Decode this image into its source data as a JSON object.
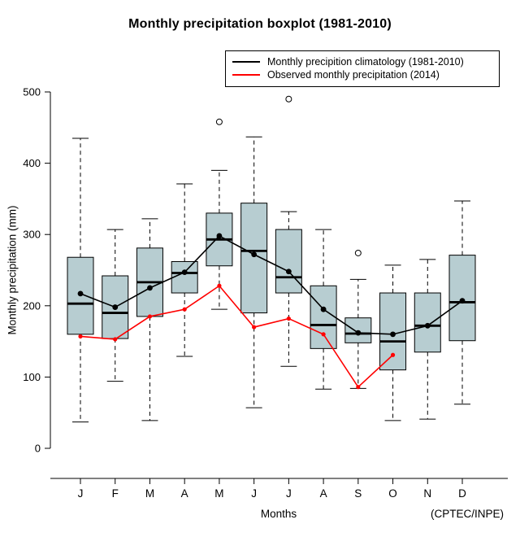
{
  "chart_data": {
    "type": "boxplot",
    "title": "Monthly precipitation boxplot (1981-2010)",
    "xlabel": "Months",
    "ylabel": "Monthly precipitation (mm)",
    "credit": "(CPTEC/INPE)",
    "categories": [
      "J",
      "F",
      "M",
      "A",
      "M",
      "J",
      "J",
      "A",
      "S",
      "O",
      "N",
      "D"
    ],
    "yticks": [
      0,
      100,
      200,
      300,
      400,
      500
    ],
    "ylim": [
      0,
      560
    ],
    "grid": false,
    "legend_position": "top-right-inside",
    "box_fill": "#b7cdd1",
    "box_stroke": "#000000",
    "boxes": [
      {
        "month": "J",
        "low": 37,
        "q1": 160,
        "median": 203,
        "q3": 268,
        "high": 435,
        "outliers": []
      },
      {
        "month": "F",
        "low": 94,
        "q1": 154,
        "median": 190,
        "q3": 242,
        "high": 307,
        "outliers": []
      },
      {
        "month": "M",
        "low": 39,
        "q1": 185,
        "median": 233,
        "q3": 281,
        "high": 322,
        "outliers": []
      },
      {
        "month": "A",
        "low": 129,
        "q1": 218,
        "median": 246,
        "q3": 262,
        "high": 371,
        "outliers": []
      },
      {
        "month": "M",
        "low": 195,
        "q1": 256,
        "median": 293,
        "q3": 330,
        "high": 390,
        "outliers": [
          458
        ]
      },
      {
        "month": "J",
        "low": 57,
        "q1": 190,
        "median": 277,
        "q3": 344,
        "high": 437,
        "outliers": []
      },
      {
        "month": "J",
        "low": 115,
        "q1": 218,
        "median": 240,
        "q3": 307,
        "high": 332,
        "outliers": [
          490
        ]
      },
      {
        "month": "A",
        "low": 83,
        "q1": 140,
        "median": 173,
        "q3": 228,
        "high": 307,
        "outliers": []
      },
      {
        "month": "S",
        "low": 84,
        "q1": 148,
        "median": 161,
        "q3": 183,
        "high": 237,
        "outliers": [
          274
        ]
      },
      {
        "month": "O",
        "low": 39,
        "q1": 110,
        "median": 150,
        "q3": 218,
        "high": 257,
        "outliers": []
      },
      {
        "month": "N",
        "low": 41,
        "q1": 135,
        "median": 172,
        "q3": 218,
        "high": 265,
        "outliers": []
      },
      {
        "month": "D",
        "low": 62,
        "q1": 151,
        "median": 205,
        "q3": 271,
        "high": 347,
        "outliers": []
      }
    ],
    "series": [
      {
        "name": "Monthly precipition climatology (1981-2010)",
        "color": "#000000",
        "values": [
          217,
          198,
          225,
          247,
          298,
          272,
          248,
          195,
          162,
          160,
          172,
          207
        ]
      },
      {
        "name": "Observed monthly precipitation (2014)",
        "color": "#ff0000",
        "values": [
          157,
          153,
          185,
          195,
          228,
          170,
          182,
          160,
          86,
          131,
          null,
          null
        ]
      }
    ]
  }
}
